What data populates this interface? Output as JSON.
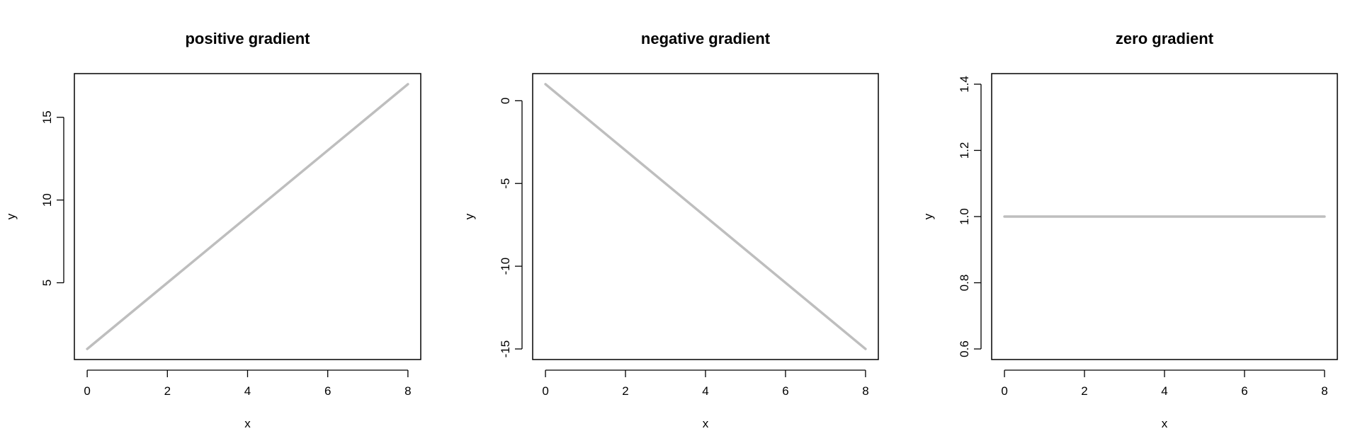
{
  "chart_data": [
    {
      "type": "line",
      "title": "positive gradient",
      "xlabel": "x",
      "ylabel": "y",
      "x": [
        0,
        8
      ],
      "series": [
        {
          "values": [
            1,
            17
          ]
        }
      ],
      "xlim": [
        -0.32,
        8.32
      ],
      "ylim": [
        0.36,
        17.64
      ],
      "xticks": [
        0,
        2,
        4,
        6,
        8
      ],
      "yticks": [
        5,
        10,
        15
      ],
      "line_color": "#bebebe",
      "grid": false,
      "legend": "none"
    },
    {
      "type": "line",
      "title": "negative gradient",
      "xlabel": "x",
      "ylabel": "y",
      "x": [
        0,
        8
      ],
      "series": [
        {
          "values": [
            1,
            -15
          ]
        }
      ],
      "xlim": [
        -0.32,
        8.32
      ],
      "ylim": [
        -15.64,
        1.64
      ],
      "xticks": [
        0,
        2,
        4,
        6,
        8
      ],
      "yticks": [
        -15,
        -10,
        -5,
        0
      ],
      "line_color": "#bebebe",
      "grid": false,
      "legend": "none"
    },
    {
      "type": "line",
      "title": "zero gradient",
      "xlabel": "x",
      "ylabel": "y",
      "x": [
        0,
        8
      ],
      "series": [
        {
          "values": [
            1,
            1
          ]
        }
      ],
      "xlim": [
        -0.32,
        8.32
      ],
      "ylim": [
        0.568,
        1.432
      ],
      "xticks": [
        0,
        2,
        4,
        6,
        8
      ],
      "yticks": [
        0.6,
        0.8,
        1.0,
        1.2,
        1.4
      ],
      "ytick_labels": [
        "0.6",
        "0.8",
        "1.0",
        "1.2",
        "1.4"
      ],
      "line_color": "#bebebe",
      "grid": false,
      "legend": "none"
    }
  ]
}
